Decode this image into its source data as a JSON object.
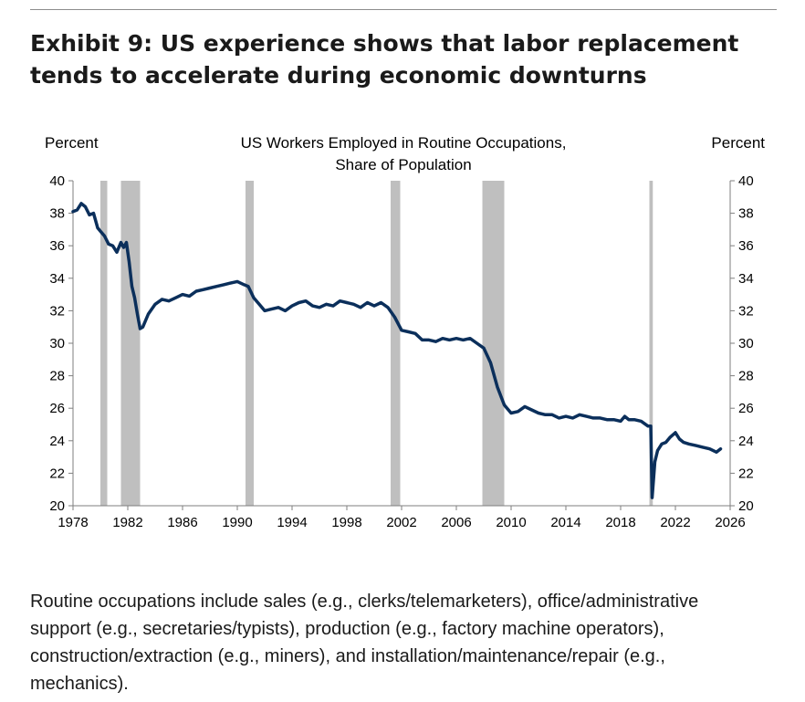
{
  "exhibit": {
    "title": "Exhibit 9: US experience shows that labor replacement tends to accelerate during economic downturns"
  },
  "footnote": "Routine occupations include sales (e.g., clerks/telemarketers), office/administrative support (e.g., secretaries/typists), production (e.g., factory machine operators), construction/extraction (e.g., miners), and installation/maintenance/repair (e.g., mechanics).",
  "chart_data": {
    "type": "line",
    "title_lines": [
      "US Workers Employed in Routine Occupations,",
      "Share of Population"
    ],
    "ylabel_left": "Percent",
    "ylabel_right": "Percent",
    "xlim": [
      1978,
      2026
    ],
    "ylim": [
      20,
      40
    ],
    "x_ticks": [
      1978,
      1982,
      1986,
      1990,
      1994,
      1998,
      2002,
      2006,
      2010,
      2014,
      2018,
      2022,
      2026
    ],
    "y_ticks": [
      20,
      22,
      24,
      26,
      28,
      30,
      32,
      34,
      36,
      38,
      40
    ],
    "grid": false,
    "line_color": "#0b2f5b",
    "recession_color": "#bfbfbf",
    "recessions": [
      [
        1980.0,
        1980.5
      ],
      [
        1981.5,
        1982.9
      ],
      [
        1990.6,
        1991.2
      ],
      [
        2001.2,
        2001.9
      ],
      [
        2007.9,
        2009.5
      ],
      [
        2020.1,
        2020.35
      ]
    ],
    "series": [
      {
        "x": [
          1978.0,
          1978.3,
          1978.6,
          1978.9,
          1979.2,
          1979.5,
          1979.8,
          1980.0,
          1980.3,
          1980.6,
          1980.9,
          1981.2,
          1981.5,
          1981.7,
          1981.9,
          1982.1,
          1982.3,
          1982.5,
          1982.7,
          1982.9,
          1983.1,
          1983.5,
          1984.0,
          1984.5,
          1985.0,
          1985.5,
          1986.0,
          1986.5,
          1987.0,
          1987.5,
          1988.0,
          1988.5,
          1989.0,
          1989.5,
          1990.0,
          1990.5,
          1990.8,
          1991.2,
          1991.6,
          1992.0,
          1992.5,
          1993.0,
          1993.5,
          1994.0,
          1994.5,
          1995.0,
          1995.5,
          1996.0,
          1996.5,
          1997.0,
          1997.5,
          1998.0,
          1998.5,
          1999.0,
          1999.5,
          2000.0,
          2000.5,
          2001.0,
          2001.5,
          2002.0,
          2002.5,
          2003.0,
          2003.5,
          2004.0,
          2004.5,
          2005.0,
          2005.5,
          2006.0,
          2006.5,
          2007.0,
          2007.5,
          2008.0,
          2008.5,
          2009.0,
          2009.5,
          2010.0,
          2010.5,
          2011.0,
          2011.5,
          2012.0,
          2012.5,
          2013.0,
          2013.5,
          2014.0,
          2014.5,
          2015.0,
          2015.5,
          2016.0,
          2016.5,
          2017.0,
          2017.5,
          2018.0,
          2018.3,
          2018.6,
          2019.0,
          2019.5,
          2020.0,
          2020.2,
          2020.3,
          2020.5,
          2020.7,
          2021.0,
          2021.3,
          2021.6,
          2022.0,
          2022.3,
          2022.6,
          2023.0,
          2023.5,
          2024.0,
          2024.5,
          2025.0,
          2025.3
        ],
        "y": [
          38.1,
          38.2,
          38.6,
          38.4,
          37.9,
          38.0,
          37.1,
          36.9,
          36.6,
          36.1,
          36.0,
          35.6,
          36.2,
          35.9,
          36.2,
          35.0,
          33.5,
          32.8,
          31.8,
          30.9,
          31.0,
          31.8,
          32.4,
          32.7,
          32.6,
          32.8,
          33.0,
          32.9,
          33.2,
          33.3,
          33.4,
          33.5,
          33.6,
          33.7,
          33.8,
          33.6,
          33.5,
          32.8,
          32.4,
          32.0,
          32.1,
          32.2,
          32.0,
          32.3,
          32.5,
          32.6,
          32.3,
          32.2,
          32.4,
          32.3,
          32.6,
          32.5,
          32.4,
          32.2,
          32.5,
          32.3,
          32.5,
          32.2,
          31.6,
          30.8,
          30.7,
          30.6,
          30.2,
          30.2,
          30.1,
          30.3,
          30.2,
          30.3,
          30.2,
          30.3,
          30.0,
          29.7,
          28.8,
          27.3,
          26.2,
          25.7,
          25.8,
          26.1,
          25.9,
          25.7,
          25.6,
          25.6,
          25.4,
          25.5,
          25.4,
          25.6,
          25.5,
          25.4,
          25.4,
          25.3,
          25.3,
          25.2,
          25.5,
          25.3,
          25.3,
          25.2,
          24.9,
          24.9,
          20.5,
          22.7,
          23.4,
          23.8,
          23.9,
          24.2,
          24.5,
          24.1,
          23.9,
          23.8,
          23.7,
          23.6,
          23.5,
          23.3,
          23.5
        ]
      }
    ]
  }
}
